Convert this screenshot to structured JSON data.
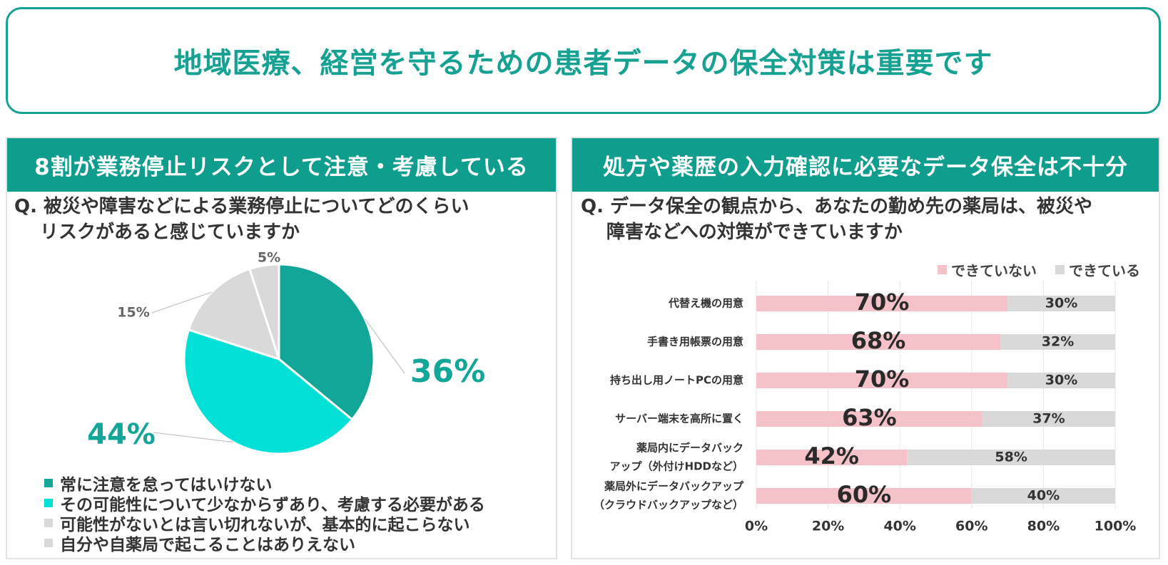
{
  "title": "地域医療、経営を守るための患者データの保全対策は重要です",
  "left": {
    "header": "8割が業務停止リスクとして注意・考慮している",
    "question_line1": "Q. 被災や障害などによる業務停止についてどのくらい",
    "question_line2": "リスクがあると感じていますか"
  },
  "right": {
    "header": "処方や薬歴の入力確認に必要なデータ保全は不十分",
    "question_line1": "Q. データ保全の観点から、あなたの勤め先の薬局は、被災や",
    "question_line2": "障害などへの対策ができていますか"
  },
  "chart_data": [
    {
      "type": "pie",
      "slices": [
        {
          "label": "常に注意を怠ってはいけない",
          "value": 36,
          "value_label": "36%",
          "color": "#12a699"
        },
        {
          "label": "その可能性について少なからずあり、考慮する必要がある",
          "value": 44,
          "value_label": "44%",
          "color": "#00e0d6"
        },
        {
          "label": "可能性がないとは言い切れないが、基本的に起こらない",
          "value": 15,
          "value_label": "15%",
          "color": "#d9d9d9"
        },
        {
          "label": "自分や自薬局で起こることはありえない",
          "value": 5,
          "value_label": "5%",
          "color": "#d9d9d9"
        }
      ]
    },
    {
      "type": "bar",
      "stacked": true,
      "orientation": "horizontal",
      "categories": [
        [
          "代替え機の用意"
        ],
        [
          "手書き用帳票の用意"
        ],
        [
          "持ち出し用ノートPCの用意"
        ],
        [
          "サーバー端末を高所に置く"
        ],
        [
          "薬局内にデータバック",
          "アップ（外付けHDDなど）"
        ],
        [
          "薬局外にデータバックアップ",
          "（クラウドバックアップなど）"
        ]
      ],
      "series": [
        {
          "name": "できていない",
          "color": "#f4c2c8",
          "values": [
            70,
            68,
            70,
            63,
            42,
            60
          ],
          "labels": [
            "70%",
            "68%",
            "70%",
            "63%",
            "42%",
            "60%"
          ]
        },
        {
          "name": "できている",
          "color": "#d9d9d9",
          "values": [
            30,
            32,
            30,
            37,
            58,
            40
          ],
          "labels": [
            "30%",
            "32%",
            "30%",
            "37%",
            "58%",
            "40%"
          ]
        }
      ],
      "x_ticks": [
        "0%",
        "20%",
        "40%",
        "60%",
        "80%",
        "100%"
      ],
      "xlim": [
        0,
        100
      ],
      "grid": true,
      "legend_position": "top-right"
    }
  ]
}
